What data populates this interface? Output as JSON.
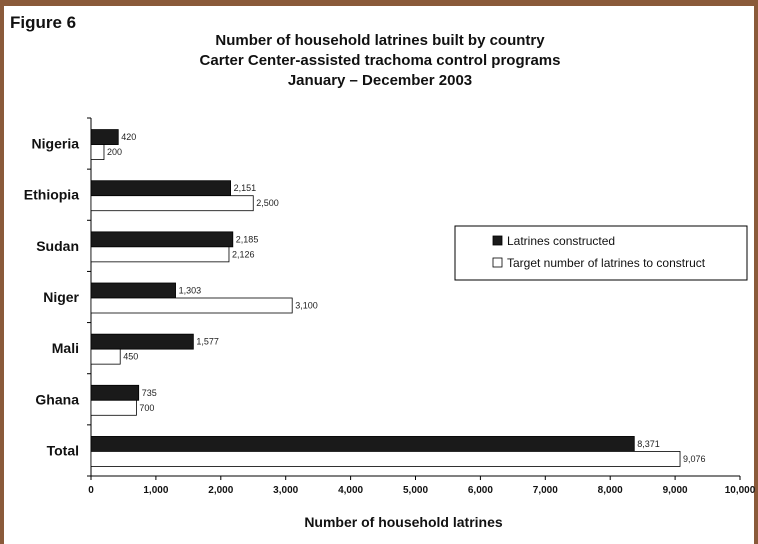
{
  "figure_label": "Figure 6",
  "chart_data": {
    "type": "bar",
    "orientation": "horizontal",
    "title_lines": [
      "Number of household latrines built by country",
      "Carter Center-assisted trachoma control programs",
      "January – December  2003"
    ],
    "categories": [
      "Nigeria",
      "Ethiopia",
      "Sudan",
      "Niger",
      "Mali",
      "Ghana",
      "Total"
    ],
    "series": [
      {
        "name": "Latrines constructed",
        "color": "#1a1a1a",
        "values": [
          420,
          2151,
          2185,
          1303,
          1577,
          735,
          8371
        ],
        "labels": [
          "420",
          "2,151",
          "2,185",
          "1,303",
          "1,577",
          "735",
          "8,371"
        ]
      },
      {
        "name": "Target number of latrines to construct",
        "color": "#ffffff",
        "values": [
          200,
          2500,
          2126,
          3100,
          450,
          700,
          9076
        ],
        "labels": [
          "200",
          "2,500",
          "2,126",
          "3,100",
          "450",
          "700",
          "9,076"
        ]
      }
    ],
    "xlabel": "Number of household latrines",
    "ylabel": "",
    "xlim": [
      0,
      10000
    ],
    "xticks": [
      0,
      1000,
      2000,
      3000,
      4000,
      5000,
      6000,
      7000,
      8000,
      9000,
      10000
    ],
    "xtick_labels": [
      "0",
      "1,000",
      "2,000",
      "3,000",
      "4,000",
      "5,000",
      "6,000",
      "7,000",
      "8,000",
      "9,000",
      "10,000"
    ],
    "grid": false,
    "legend_position": "right"
  }
}
